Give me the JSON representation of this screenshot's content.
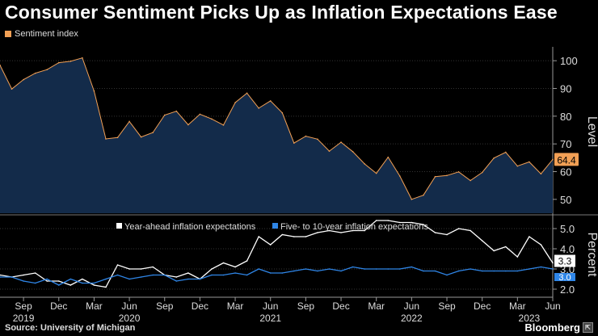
{
  "title": "Consumer Sentiment Picks Up as Inflation Expectations Ease",
  "source": "Source: University of Michigan",
  "brand": "Bloomberg",
  "colors": {
    "sentiment": "#f2a055",
    "sentiment_fill": "#132b4a",
    "year_ahead": "#ffffff",
    "long_run": "#2f86e8",
    "background": "#000000"
  },
  "chart_data": [
    {
      "type": "area",
      "legend": [
        "Sentiment index"
      ],
      "ylabel": "Level",
      "ylim": [
        45,
        105
      ],
      "yticks": [
        50,
        60,
        70,
        80,
        90,
        100
      ],
      "last_value_label": "64.4",
      "x": [
        "2019-07",
        "2019-08",
        "2019-09",
        "2019-10",
        "2019-11",
        "2019-12",
        "2020-01",
        "2020-02",
        "2020-03",
        "2020-04",
        "2020-05",
        "2020-06",
        "2020-07",
        "2020-08",
        "2020-09",
        "2020-10",
        "2020-11",
        "2020-12",
        "2021-01",
        "2021-02",
        "2021-03",
        "2021-04",
        "2021-05",
        "2021-06",
        "2021-07",
        "2021-08",
        "2021-09",
        "2021-10",
        "2021-11",
        "2021-12",
        "2022-01",
        "2022-02",
        "2022-03",
        "2022-04",
        "2022-05",
        "2022-06",
        "2022-07",
        "2022-08",
        "2022-09",
        "2022-10",
        "2022-11",
        "2022-12",
        "2023-01",
        "2023-02",
        "2023-03",
        "2023-04",
        "2023-05",
        "2023-06"
      ],
      "series": [
        {
          "name": "Sentiment index",
          "values": [
            98.4,
            89.8,
            93.2,
            95.5,
            96.8,
            99.3,
            99.8,
            101.0,
            89.1,
            71.8,
            72.3,
            78.1,
            72.5,
            74.1,
            80.4,
            81.8,
            76.9,
            80.7,
            79.0,
            76.8,
            84.9,
            88.3,
            82.9,
            85.5,
            81.2,
            70.3,
            72.8,
            71.7,
            67.4,
            70.6,
            67.2,
            62.8,
            59.4,
            65.2,
            58.4,
            50.0,
            51.5,
            58.2,
            58.6,
            59.9,
            56.8,
            59.7,
            64.9,
            67.0,
            62.0,
            63.5,
            59.2,
            64.4
          ]
        }
      ]
    },
    {
      "type": "line",
      "ylabel": "Percent",
      "ylim": [
        1.6,
        5.6
      ],
      "yticks": [
        2.0,
        3.0,
        4.0,
        5.0
      ],
      "value_labels": [
        "3.3",
        "3.0"
      ],
      "x_tick_labels": [
        "Sep",
        "Dec",
        "Mar",
        "Jun",
        "Sep",
        "Dec",
        "Mar",
        "Jun",
        "Sep",
        "Dec",
        "Mar",
        "Jun",
        "Sep",
        "Dec",
        "Mar",
        "Jun"
      ],
      "x_tick_dates": [
        "2019-09",
        "2019-12",
        "2020-03",
        "2020-06",
        "2020-09",
        "2020-12",
        "2021-03",
        "2021-06",
        "2021-09",
        "2021-12",
        "2022-03",
        "2022-06",
        "2022-09",
        "2022-12",
        "2023-03",
        "2023-06"
      ],
      "year_labels": [
        "2019",
        "2020",
        "2021",
        "2022",
        "2023"
      ],
      "year_label_dates": [
        "2019-09",
        "2020-06",
        "2021-06",
        "2022-06",
        "2023-04"
      ],
      "legend": [
        "Year-ahead inflation expectations",
        "Five- to 10-year inflation expectations"
      ],
      "x": [
        "2019-07",
        "2019-08",
        "2019-09",
        "2019-10",
        "2019-11",
        "2019-12",
        "2020-01",
        "2020-02",
        "2020-03",
        "2020-04",
        "2020-05",
        "2020-06",
        "2020-07",
        "2020-08",
        "2020-09",
        "2020-10",
        "2020-11",
        "2020-12",
        "2021-01",
        "2021-02",
        "2021-03",
        "2021-04",
        "2021-05",
        "2021-06",
        "2021-07",
        "2021-08",
        "2021-09",
        "2021-10",
        "2021-11",
        "2021-12",
        "2022-01",
        "2022-02",
        "2022-03",
        "2022-04",
        "2022-05",
        "2022-06",
        "2022-07",
        "2022-08",
        "2022-09",
        "2022-10",
        "2022-11",
        "2022-12",
        "2023-01",
        "2023-02",
        "2023-03",
        "2023-04",
        "2023-05",
        "2023-06"
      ],
      "series": [
        {
          "name": "Year-ahead inflation expectations",
          "values": [
            2.7,
            2.6,
            2.7,
            2.8,
            2.4,
            2.4,
            2.2,
            2.5,
            2.2,
            2.1,
            3.2,
            3.0,
            3.0,
            3.1,
            2.7,
            2.6,
            2.8,
            2.5,
            3.0,
            3.3,
            3.1,
            3.4,
            4.6,
            4.2,
            4.7,
            4.6,
            4.6,
            4.8,
            4.9,
            4.8,
            4.9,
            4.9,
            5.4,
            5.4,
            5.3,
            5.3,
            5.2,
            4.8,
            4.7,
            5.0,
            4.9,
            4.4,
            3.9,
            4.1,
            3.6,
            4.6,
            4.2,
            3.3
          ]
        },
        {
          "name": "Five- to 10-year inflation expectations",
          "values": [
            2.6,
            2.6,
            2.4,
            2.3,
            2.5,
            2.2,
            2.5,
            2.3,
            2.3,
            2.5,
            2.7,
            2.5,
            2.6,
            2.7,
            2.7,
            2.4,
            2.5,
            2.5,
            2.7,
            2.7,
            2.8,
            2.7,
            3.0,
            2.8,
            2.8,
            2.9,
            3.0,
            2.9,
            3.0,
            2.9,
            3.1,
            3.0,
            3.0,
            3.0,
            3.0,
            3.1,
            2.9,
            2.9,
            2.7,
            2.9,
            3.0,
            2.9,
            2.9,
            2.9,
            2.9,
            3.0,
            3.1,
            3.0
          ]
        }
      ]
    }
  ]
}
